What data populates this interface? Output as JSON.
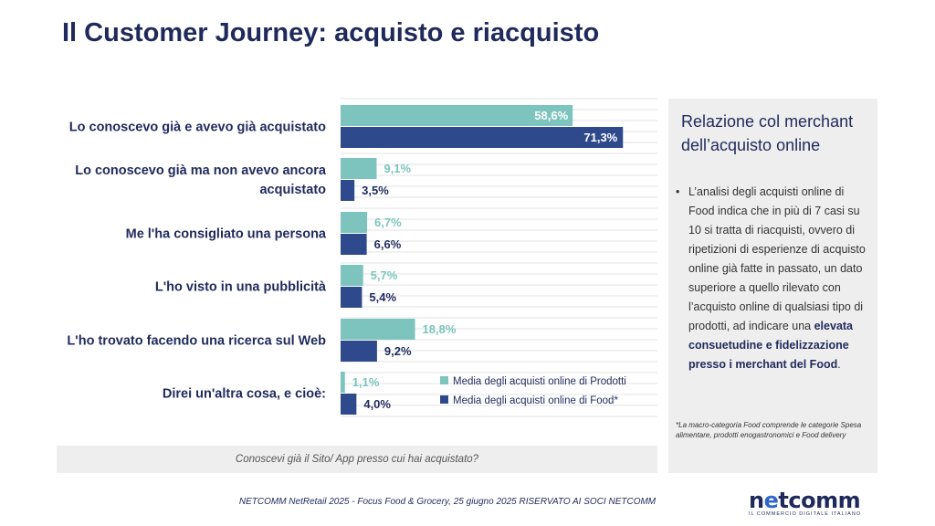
{
  "page": {
    "title": "Il Customer Journey: acquisto e riacquisto",
    "question": "Conoscevi già il Sito/ App presso cui hai acquistato?",
    "footer": "NETCOMM NetRetail 2025 - Focus Food & Grocery, 25 giugno 2025 RISERVATO AI SOCI NETCOMM"
  },
  "side_panel": {
    "title": "Relazione col merchant dell’acquisto online",
    "bullet_marker": "•",
    "body_plain": "L’analisi degli acquisti online di Food indica che in più di 7 casi su 10 si tratta di riacquisti, ovvero di ripetizioni di esperienze di acquisto online già fatte in passato, un dato superiore a quello rilevato con l’acquisto online di qualsiasi tipo di prodotti, ad indicare una",
    "body_bold": "elevata consuetudine e fidelizzazione presso i merchant del Food",
    "body_end": ".",
    "note": "*La macro-categoria Food comprende le categorie Spesa alimentare, prodotti enogastronomici e Food delivery"
  },
  "logo": {
    "word_pre": "n",
    "word_accent": "e",
    "word_post": "tcomm",
    "tagline": "IL COMMERCIO DIGITALE ITALIANO"
  },
  "chart_data": {
    "type": "bar",
    "orientation": "horizontal",
    "categories": [
      "Lo conoscevo già e avevo già acquistato",
      "Lo conoscevo già ma non avevo ancora acquistato",
      "Me l'ha consigliato una persona",
      "L'ho visto in una pubblicità",
      "L'ho trovato facendo una ricerca sul Web",
      "Direi un'altra cosa, e cioè:"
    ],
    "series": [
      {
        "name": "Media degli acquisti online di Prodotti",
        "values": [
          58.6,
          9.1,
          6.7,
          5.7,
          18.8,
          1.1
        ],
        "labels": [
          "58,6%",
          "9,1%",
          "6,7%",
          "5,7%",
          "18,8%",
          "1,1%"
        ],
        "color": "#7cc4bd"
      },
      {
        "name": "Media degli acquisti online di Food*",
        "values": [
          71.3,
          3.5,
          6.6,
          5.4,
          9.2,
          4.0
        ],
        "labels": [
          "71,3%",
          "3,5%",
          "6,6%",
          "5,4%",
          "9,2%",
          "4,0%"
        ],
        "color": "#2e4a8c"
      }
    ],
    "xlim": [
      0,
      80
    ],
    "grid": true,
    "legend_position": "bottom-right"
  }
}
